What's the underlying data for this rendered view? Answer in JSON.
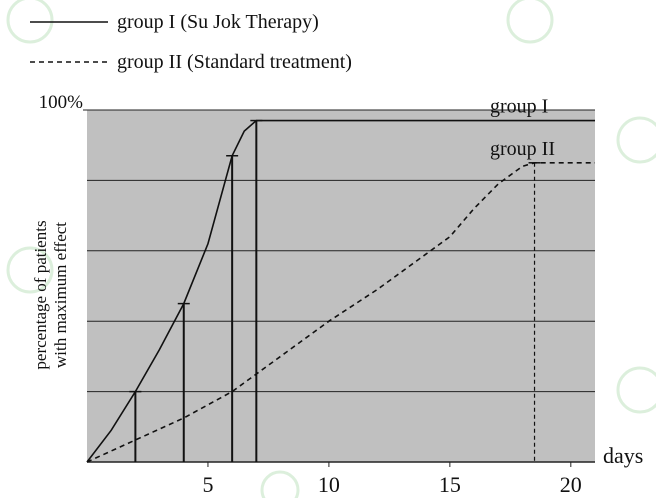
{
  "chart_data": {
    "type": "line",
    "legend": [
      "group  I (Su Jok Therapy)",
      "group  II (Standard treatment)"
    ],
    "y_label": [
      "percentage of patients",
      "with maximum effect"
    ],
    "x_label": "days",
    "xlim": [
      0,
      21
    ],
    "ylim": [
      0,
      100
    ],
    "xticks": [
      5,
      10,
      15,
      20
    ],
    "yticks": [
      {
        "value": 100,
        "label": "100%"
      }
    ],
    "ygrid": [
      20,
      40,
      60,
      80,
      100
    ],
    "background": "#c0c0c0",
    "series": [
      {
        "name": "group  I",
        "color": "#111111",
        "dash": false,
        "x": [
          0,
          1,
          2,
          3,
          4,
          5,
          6,
          6.5,
          7,
          21
        ],
        "values": [
          0,
          9,
          20,
          32,
          45,
          62,
          87,
          94,
          97,
          97
        ],
        "drops": [
          2,
          4,
          6,
          7
        ]
      },
      {
        "name": "group  II",
        "color": "#111111",
        "dash": true,
        "x": [
          0,
          4,
          6,
          8,
          10,
          12,
          14,
          15,
          16,
          17,
          18,
          18.5,
          21
        ],
        "values": [
          0,
          12.5,
          20,
          30,
          40,
          49,
          59,
          64,
          72,
          79,
          84,
          85,
          85
        ],
        "drops": [
          18.5
        ]
      }
    ]
  }
}
